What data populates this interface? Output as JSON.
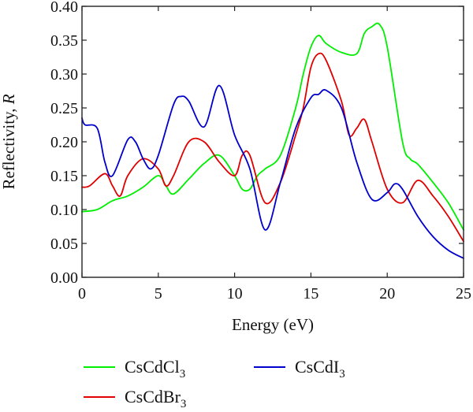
{
  "chart_data": {
    "type": "line",
    "title": "",
    "xlabel": "Energy (eV)",
    "ylabel": {
      "text": "Reflectivity, ",
      "var": "R"
    },
    "xlim": [
      0,
      25
    ],
    "ylim": [
      0,
      0.4
    ],
    "xticks": [
      0,
      5,
      10,
      15,
      20,
      25
    ],
    "xtick_labels": [
      "0",
      "5",
      "10",
      "15",
      "20",
      "25"
    ],
    "yticks": [
      0,
      0.05,
      0.1,
      0.15,
      0.2,
      0.25,
      0.3,
      0.35,
      0.4
    ],
    "ytick_labels": [
      "0.00",
      "0.05",
      "0.10",
      "0.15",
      "0.20",
      "0.25",
      "0.30",
      "0.35",
      "0.40"
    ],
    "grid": false,
    "legend_position": "bottom",
    "series": [
      {
        "name": "CsCdCl3",
        "label_main": "CsCdCl",
        "label_sub": "3",
        "color": "#00ee00",
        "x": [
          0,
          1,
          2,
          3,
          4,
          5,
          5.5,
          6,
          7,
          8,
          9,
          10,
          10.5,
          11,
          11.5,
          12,
          13,
          14,
          14.5,
          15,
          15.5,
          16,
          17,
          18,
          18.5,
          19,
          19.5,
          20,
          21,
          21.5,
          22,
          23,
          24,
          25
        ],
        "y": [
          0.097,
          0.1,
          0.113,
          0.12,
          0.133,
          0.15,
          0.135,
          0.123,
          0.145,
          0.168,
          0.18,
          0.15,
          0.13,
          0.13,
          0.15,
          0.16,
          0.18,
          0.25,
          0.3,
          0.34,
          0.357,
          0.345,
          0.332,
          0.33,
          0.36,
          0.37,
          0.373,
          0.34,
          0.2,
          0.175,
          0.167,
          0.14,
          0.11,
          0.07
        ]
      },
      {
        "name": "CsCdBr3",
        "label_main": "CsCdBr",
        "label_sub": "3",
        "color": "#e00000",
        "x": [
          0,
          0.5,
          1.5,
          2,
          2.5,
          3,
          4,
          5,
          5.5,
          6,
          7,
          8,
          9,
          10,
          10.5,
          11,
          12,
          13,
          14,
          14.5,
          15,
          15.5,
          16,
          17,
          17.5,
          18,
          18.5,
          19,
          20,
          21,
          22,
          23,
          24,
          25
        ],
        "y": [
          0.133,
          0.135,
          0.153,
          0.135,
          0.12,
          0.15,
          0.175,
          0.16,
          0.135,
          0.15,
          0.2,
          0.2,
          0.17,
          0.15,
          0.18,
          0.18,
          0.11,
          0.14,
          0.21,
          0.25,
          0.31,
          0.33,
          0.32,
          0.26,
          0.21,
          0.22,
          0.233,
          0.2,
          0.13,
          0.11,
          0.143,
          0.12,
          0.09,
          0.053
        ]
      },
      {
        "name": "CsCdI3",
        "label_main": "CsCdI",
        "label_sub": "3",
        "color": "#0000cc",
        "x": [
          0,
          0.2,
          1,
          1.5,
          2,
          3,
          3.5,
          4,
          4.5,
          5,
          6,
          6.5,
          7,
          8,
          9,
          10,
          11,
          12,
          13,
          14,
          15,
          15.5,
          16,
          17,
          18,
          19,
          20,
          20.5,
          21,
          22,
          23,
          24,
          25
        ],
        "y": [
          0.235,
          0.225,
          0.22,
          0.17,
          0.15,
          0.203,
          0.2,
          0.175,
          0.16,
          0.18,
          0.255,
          0.267,
          0.26,
          0.222,
          0.283,
          0.21,
          0.16,
          0.07,
          0.14,
          0.22,
          0.265,
          0.27,
          0.276,
          0.25,
          0.17,
          0.115,
          0.125,
          0.138,
          0.13,
          0.09,
          0.06,
          0.04,
          0.028
        ]
      }
    ]
  }
}
